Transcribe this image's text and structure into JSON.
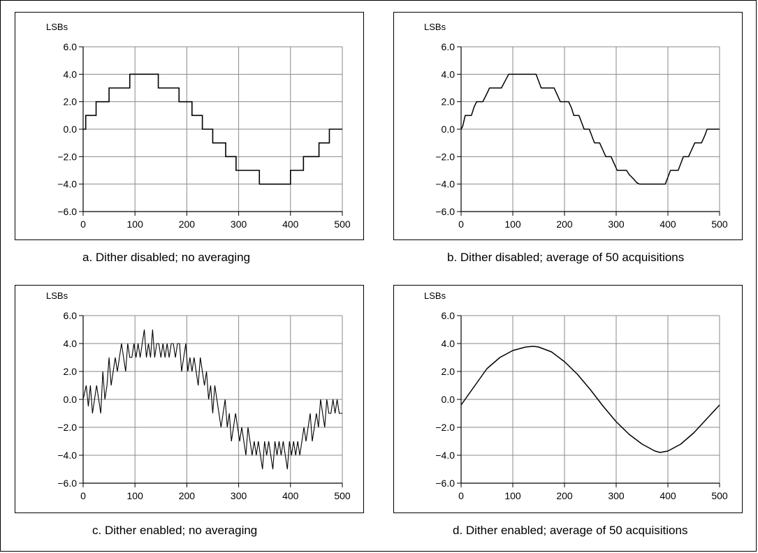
{
  "figure": {
    "captions": {
      "a": "a.  Dither disabled; no averaging",
      "b": "b.  Dither disabled; average of 50 acquisitions",
      "c": "c.  Dither enabled; no averaging",
      "d": "d.  Dither enabled; average of 50 acquisitions"
    }
  },
  "chart_data": [
    {
      "id": "a",
      "type": "line",
      "style": "step",
      "title": "",
      "ylabel": "LSBs",
      "xlabel": "",
      "xlim": [
        0,
        500
      ],
      "ylim": [
        -6,
        6
      ],
      "xticks": [
        0,
        100,
        200,
        300,
        400,
        500
      ],
      "yticks": [
        6,
        4,
        2,
        0,
        -2,
        -4,
        -6
      ],
      "ytick_labels": [
        "6.0",
        "4.0",
        "2.0",
        "0.0",
        "−2.0",
        "−4.0",
        "−6.0"
      ],
      "grid": true,
      "series": [
        {
          "x": [
            0,
            5,
            5,
            25,
            25,
            50,
            50,
            90,
            90,
            145,
            145,
            185,
            185,
            210,
            210,
            230,
            230,
            250,
            250,
            275,
            275,
            295,
            295,
            320,
            320,
            340,
            340,
            400,
            400,
            425,
            425,
            455,
            455,
            475,
            475,
            495,
            495,
            500
          ],
          "y": [
            0,
            0,
            1,
            1,
            2,
            2,
            3,
            3,
            4,
            4,
            3,
            3,
            2,
            2,
            1,
            1,
            0,
            0,
            -1,
            -1,
            -2,
            -2,
            -3,
            -3,
            -3,
            -3,
            -4,
            -4,
            -3,
            -3,
            -2,
            -2,
            -1,
            -1,
            0,
            0,
            0,
            0
          ]
        }
      ]
    },
    {
      "id": "b",
      "type": "line",
      "style": "smoothed-step",
      "title": "",
      "ylabel": "LSBs",
      "xlabel": "",
      "xlim": [
        0,
        500
      ],
      "ylim": [
        -6,
        6
      ],
      "xticks": [
        0,
        100,
        200,
        300,
        400,
        500
      ],
      "yticks": [
        6,
        4,
        2,
        0,
        -2,
        -4,
        -6
      ],
      "ytick_labels": [
        "6.0",
        "4.0",
        "2.0",
        "0.0",
        "−2.0",
        "−4.0",
        "−6.0"
      ],
      "grid": true,
      "series": [
        {
          "x": [
            0,
            3,
            8,
            20,
            25,
            30,
            42,
            50,
            55,
            78,
            85,
            92,
            145,
            150,
            155,
            180,
            186,
            192,
            208,
            214,
            218,
            228,
            233,
            238,
            248,
            253,
            258,
            268,
            274,
            280,
            290,
            296,
            302,
            320,
            325,
            333,
            340,
            345,
            395,
            400,
            405,
            420,
            425,
            430,
            440,
            446,
            452,
            465,
            471,
            476,
            488,
            493,
            497,
            500
          ],
          "y": [
            0,
            0.2,
            1,
            1,
            1.6,
            2,
            2,
            2.6,
            3,
            3,
            3.5,
            4,
            4,
            3.5,
            3,
            3,
            2.5,
            2,
            2,
            1.5,
            1,
            1,
            0.5,
            0,
            0,
            -0.5,
            -1,
            -1,
            -1.5,
            -2,
            -2,
            -2.5,
            -3,
            -3,
            -3.3,
            -3.6,
            -3.9,
            -4,
            -4,
            -3.5,
            -3,
            -3,
            -2.5,
            -2,
            -2,
            -1.5,
            -1,
            -1,
            -0.5,
            0,
            0,
            0,
            0,
            0
          ]
        }
      ]
    },
    {
      "id": "c",
      "type": "line",
      "style": "noisy-step",
      "title": "",
      "ylabel": "LSBs",
      "xlabel": "",
      "xlim": [
        0,
        500
      ],
      "ylim": [
        -6,
        6
      ],
      "xticks": [
        0,
        100,
        200,
        300,
        400,
        500
      ],
      "yticks": [
        6,
        4,
        2,
        0,
        -2,
        -4,
        -6
      ],
      "ytick_labels": [
        "6.0",
        "4.0",
        "2.0",
        "0.0",
        "−2.0",
        "−4.0",
        "−6.0"
      ],
      "grid": true,
      "series": [
        {
          "x": [
            0,
            6,
            10,
            14,
            18,
            22,
            26,
            30,
            34,
            38,
            42,
            46,
            50,
            54,
            58,
            62,
            66,
            70,
            74,
            78,
            82,
            86,
            90,
            94,
            98,
            102,
            106,
            110,
            114,
            118,
            122,
            126,
            130,
            134,
            138,
            142,
            146,
            150,
            154,
            158,
            162,
            166,
            170,
            174,
            178,
            182,
            186,
            190,
            194,
            198,
            202,
            206,
            210,
            214,
            218,
            222,
            226,
            230,
            234,
            238,
            242,
            246,
            250,
            254,
            258,
            262,
            266,
            270,
            274,
            278,
            282,
            286,
            290,
            294,
            298,
            302,
            306,
            310,
            314,
            318,
            322,
            326,
            330,
            334,
            338,
            342,
            346,
            350,
            354,
            358,
            362,
            366,
            370,
            374,
            378,
            382,
            386,
            390,
            394,
            398,
            402,
            406,
            410,
            414,
            418,
            422,
            426,
            430,
            434,
            438,
            442,
            446,
            450,
            454,
            458,
            462,
            466,
            470,
            474,
            478,
            482,
            486,
            490,
            494,
            500
          ],
          "y": [
            0,
            1,
            -0.5,
            1,
            -1,
            0,
            1,
            0,
            -1,
            2,
            0,
            1,
            3,
            1,
            2,
            3,
            2,
            3,
            4,
            3,
            2,
            4,
            3,
            3,
            4,
            3,
            4,
            3,
            4,
            5,
            3,
            4,
            3,
            5,
            3,
            4,
            4,
            3,
            4,
            3,
            4,
            3,
            4,
            4,
            3,
            4,
            4,
            2,
            3,
            4,
            2,
            3,
            2,
            3,
            2,
            1,
            3,
            2,
            1,
            2,
            0,
            1,
            -1,
            1,
            0,
            -1,
            -2,
            -1,
            0,
            -2,
            -1,
            -3,
            -2,
            -1,
            -2,
            -3,
            -2,
            -3,
            -4,
            -2,
            -3,
            -4,
            -3,
            -4,
            -3,
            -4,
            -5,
            -3,
            -4,
            -3,
            -4,
            -5,
            -3,
            -4,
            -3,
            -4,
            -3,
            -4,
            -5,
            -3,
            -4,
            -3,
            -4,
            -3,
            -4,
            -3,
            -2,
            -3,
            -2,
            -1,
            -3,
            -2,
            -1,
            -2,
            0,
            -1,
            -2,
            0,
            -1,
            -1,
            0,
            -1,
            0,
            -1,
            -1
          ]
        }
      ]
    },
    {
      "id": "d",
      "type": "line",
      "style": "smooth",
      "title": "",
      "ylabel": "LSBs",
      "xlabel": "",
      "xlim": [
        0,
        500
      ],
      "ylim": [
        -6,
        6
      ],
      "xticks": [
        0,
        100,
        200,
        300,
        400,
        500
      ],
      "yticks": [
        6,
        4,
        2,
        0,
        -2,
        -4,
        -6
      ],
      "ytick_labels": [
        "6.0",
        "4.0",
        "2.0",
        "0.0",
        "−2.0",
        "−4.0",
        "−6.0"
      ],
      "grid": true,
      "series": [
        {
          "x": [
            0,
            25,
            50,
            75,
            100,
            125,
            140,
            150,
            175,
            200,
            225,
            250,
            275,
            300,
            325,
            350,
            375,
            385,
            400,
            425,
            450,
            475,
            500
          ],
          "y": [
            -0.4,
            0.9,
            2.2,
            3.0,
            3.5,
            3.75,
            3.8,
            3.75,
            3.4,
            2.7,
            1.8,
            0.7,
            -0.5,
            -1.6,
            -2.5,
            -3.2,
            -3.7,
            -3.8,
            -3.7,
            -3.2,
            -2.4,
            -1.4,
            -0.4
          ]
        }
      ]
    }
  ]
}
